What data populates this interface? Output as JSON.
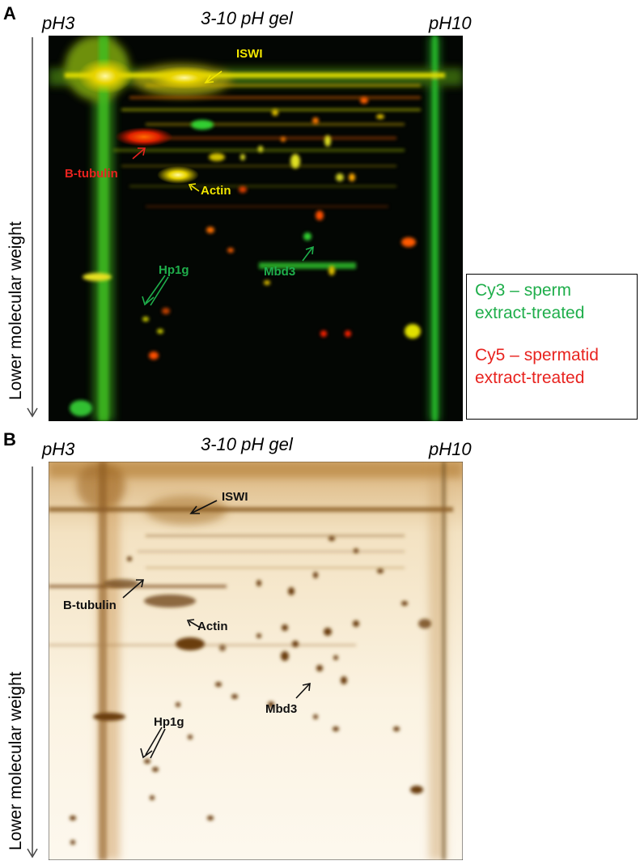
{
  "panels": [
    {
      "letter": "A",
      "gel_title": "3-10 pH gel",
      "ph_left": "pH3",
      "ph_right": "pH10",
      "y_label": "Lower molecular weight",
      "labels": {
        "iswi": "ISWI",
        "btubulin": "B-tubulin",
        "actin": "Actin",
        "hp1g": "Hp1g",
        "mbd3": "Mbd3"
      },
      "label_colors": {
        "iswi": "#f2e600",
        "btubulin": "#e8231f",
        "actin": "#f2e600",
        "hp1g": "#1fae4b",
        "mbd3": "#1fae4b"
      }
    },
    {
      "letter": "B",
      "gel_title": "3-10 pH gel",
      "ph_left": "pH3",
      "ph_right": "pH10",
      "y_label": "Lower molecular weight",
      "labels": {
        "iswi": "ISWI",
        "btubulin": "B-tubulin",
        "actin": "Actin",
        "hp1g": "Hp1g",
        "mbd3": "Mbd3"
      },
      "label_color": "#111111"
    }
  ],
  "legend": {
    "cy3_line1": "Cy3 – sperm",
    "cy3_line2": "extract-treated",
    "cy5_line1": "Cy5 – spermatid",
    "cy5_line2": "extract-treated",
    "cy3_color": "#1fae4b",
    "cy5_color": "#e8231f"
  }
}
